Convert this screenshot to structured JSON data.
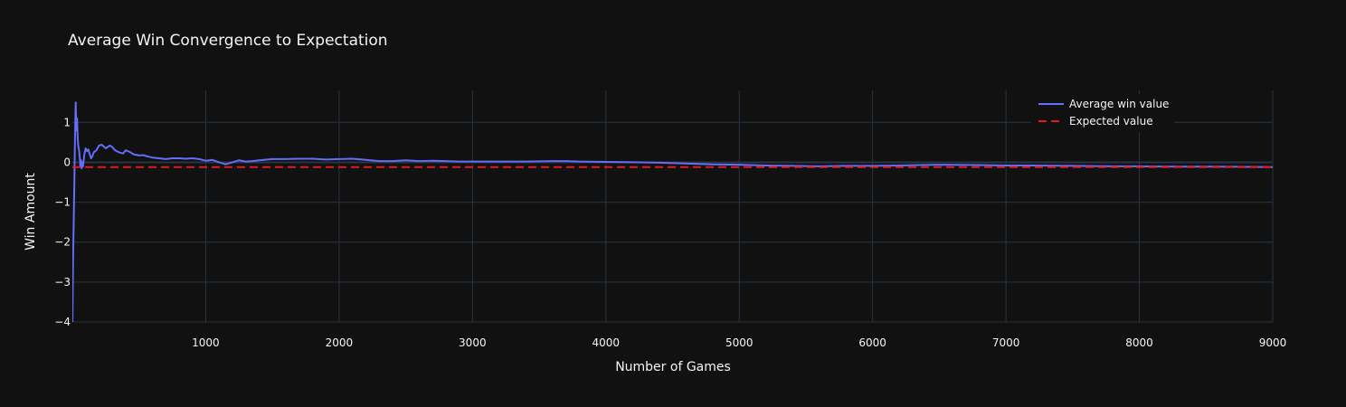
{
  "colors": {
    "background": "#111111",
    "grid": "#283442",
    "zero_line": "#283442",
    "text": "#f2f5fa",
    "series_average": "#636efa",
    "series_expected": "#e31a1c"
  },
  "chart_data": {
    "type": "line",
    "title": "Average Win Convergence to Expectation",
    "xlabel": "Number of Games",
    "ylabel": "Win Amount",
    "xlim": [
      0,
      9000
    ],
    "ylim": [
      -4,
      1.8
    ],
    "grid": true,
    "legend_position": "top-right",
    "x_ticks": [
      1000,
      2000,
      3000,
      4000,
      5000,
      6000,
      7000,
      8000,
      9000
    ],
    "x_tick_labels": [
      "1000",
      "2000",
      "3000",
      "4000",
      "5000",
      "6000",
      "7000",
      "8000",
      "9000"
    ],
    "y_ticks": [
      1,
      0,
      -1,
      -2,
      -3,
      -4
    ],
    "y_tick_labels": [
      "1",
      "0",
      "−1",
      "−2",
      "−3",
      "−4"
    ],
    "series": [
      {
        "name": "Average win value",
        "style": "solid",
        "x": [
          1,
          5,
          10,
          15,
          20,
          25,
          30,
          35,
          40,
          45,
          50,
          55,
          60,
          65,
          70,
          75,
          80,
          90,
          100,
          110,
          120,
          130,
          140,
          150,
          160,
          180,
          200,
          220,
          250,
          280,
          300,
          320,
          350,
          380,
          400,
          430,
          460,
          500,
          530,
          560,
          600,
          650,
          700,
          750,
          800,
          850,
          900,
          950,
          1000,
          1050,
          1100,
          1150,
          1200,
          1250,
          1300,
          1350,
          1400,
          1500,
          1600,
          1700,
          1800,
          1900,
          2000,
          2100,
          2200,
          2300,
          2400,
          2500,
          2600,
          2700,
          2800,
          2900,
          3000,
          3200,
          3400,
          3600,
          3700,
          3800,
          4000,
          4200,
          4400,
          4600,
          4800,
          5000,
          5200,
          5400,
          5600,
          5800,
          6000,
          6200,
          6500,
          6800,
          7000,
          7200,
          7500,
          7800,
          8000,
          8300,
          8600,
          9000
        ],
        "values": [
          -4.0,
          -2.5,
          -1.5,
          -0.5,
          0.6,
          1.5,
          0.8,
          1.1,
          0.6,
          0.4,
          0.3,
          0.15,
          -0.1,
          0.05,
          -0.15,
          0.0,
          -0.1,
          0.2,
          0.35,
          0.28,
          0.32,
          0.2,
          0.1,
          0.15,
          0.25,
          0.3,
          0.42,
          0.44,
          0.35,
          0.42,
          0.38,
          0.3,
          0.25,
          0.22,
          0.3,
          0.26,
          0.2,
          0.17,
          0.18,
          0.15,
          0.12,
          0.1,
          0.08,
          0.1,
          0.1,
          0.09,
          0.1,
          0.08,
          0.04,
          0.06,
          0.0,
          -0.05,
          0.0,
          0.05,
          0.02,
          0.03,
          0.05,
          0.08,
          0.08,
          0.09,
          0.09,
          0.07,
          0.08,
          0.09,
          0.06,
          0.03,
          0.03,
          0.05,
          0.03,
          0.04,
          0.03,
          0.02,
          0.02,
          0.02,
          0.02,
          0.03,
          0.03,
          0.02,
          0.01,
          0.0,
          -0.01,
          -0.03,
          -0.05,
          -0.06,
          -0.08,
          -0.09,
          -0.1,
          -0.09,
          -0.09,
          -0.08,
          -0.06,
          -0.07,
          -0.08,
          -0.08,
          -0.09,
          -0.1,
          -0.1,
          -0.11,
          -0.11,
          -0.12
        ]
      },
      {
        "name": "Expected value",
        "style": "dash",
        "x": [
          0,
          9000
        ],
        "values": [
          -0.12,
          -0.12
        ]
      }
    ]
  }
}
